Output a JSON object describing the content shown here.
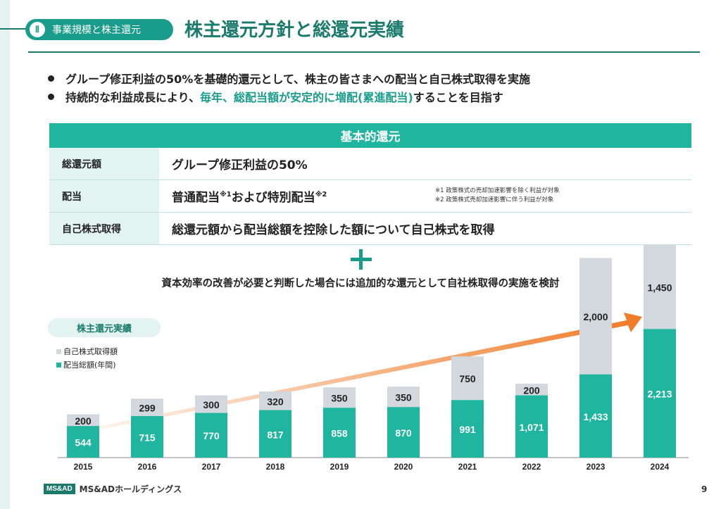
{
  "header": {
    "section_number": "Ⅱ",
    "section_label": "事業規模と株主還元",
    "title": "株主還元方針と総還元実績"
  },
  "bullets": [
    {
      "text_plain": "グループ修正利益の50%を基礎的還元として、株主の皆さまへの配当と自己株式取得を実施"
    },
    {
      "text_before": "持続的な利益成長により、",
      "text_highlight": "毎年、総配当額が安定的に増配(累進配当)",
      "text_after": "することを目指す"
    }
  ],
  "policy_table": {
    "header": "基本的還元",
    "rows": [
      {
        "key": "総還元額",
        "value": "グループ修正利益の50%"
      },
      {
        "key": "配当",
        "value_a": "普通配当",
        "sup1": "※1",
        "value_b": "および特別配当",
        "sup2": "※2"
      },
      {
        "key": "自己株式取得",
        "value": "総還元額から配当総額を控除した額について自己株式を取得"
      }
    ],
    "notes": [
      "※1 政策株式の売却加速影響を除く利益が対象",
      "※2 政策株式売却加速影響に伴う利益が対象"
    ]
  },
  "additional": "資本効率の改善が必要と判断した場合には追加的な還元として自社株取得の実施を検討",
  "chart_pill": "株主還元実績",
  "legend": {
    "buyback": "自己株式取得額",
    "dividend": "配当総額(年間)"
  },
  "colors": {
    "accent": "#1a9c8c",
    "dividend": "#1fb59f",
    "buyback": "#d2d8de",
    "arrow": "#f07a26"
  },
  "chart_data": {
    "type": "bar",
    "stacked": true,
    "categories": [
      "2015",
      "2016",
      "2017",
      "2018",
      "2019",
      "2020",
      "2021",
      "2022",
      "2023",
      "2024"
    ],
    "series": [
      {
        "name": "配当総額(年間)",
        "values": [
          544,
          715,
          770,
          817,
          858,
          870,
          991,
          1071,
          1433,
          2213
        ]
      },
      {
        "name": "自己株式取得額",
        "values": [
          200,
          299,
          300,
          320,
          350,
          350,
          750,
          200,
          2000,
          1450
        ]
      }
    ],
    "value_labels_dividend": [
      "544",
      "715",
      "770",
      "817",
      "858",
      "870",
      "991",
      "1,071",
      "1,433",
      "2,213"
    ],
    "value_labels_buyback": [
      "200",
      "299",
      "300",
      "320",
      "350",
      "350",
      "750",
      "200",
      "2,000",
      "1,450"
    ],
    "legend_position": "top-left",
    "grid": false
  },
  "footer": {
    "logo_box": "MS&AD",
    "company": "MS&ADホールディングス",
    "page_number": "9"
  }
}
